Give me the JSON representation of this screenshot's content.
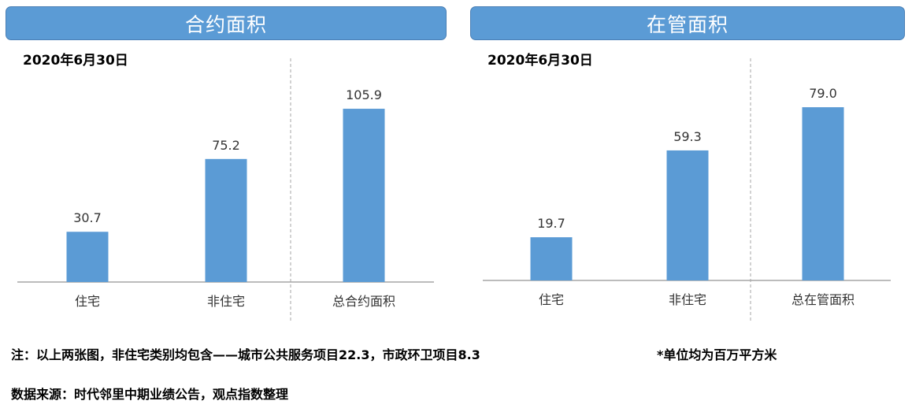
{
  "chart_data": [
    {
      "type": "bar",
      "title": "合约面积",
      "subtitle": "2020年6月30日",
      "categories": [
        "住宅",
        "非住宅",
        "总合约面积"
      ],
      "values": [
        30.7,
        75.2,
        105.9
      ],
      "value_labels": [
        "30.7",
        "75.2",
        "105.9"
      ],
      "bar_color": "#5B9BD5",
      "ylim": [
        0,
        130
      ],
      "grid": false,
      "divider_before_last": true
    },
    {
      "type": "bar",
      "title": "在管面积",
      "subtitle": "2020年6月30日",
      "categories": [
        "住宅",
        "非住宅",
        "总在管面积"
      ],
      "values": [
        19.7,
        59.3,
        79.0
      ],
      "value_labels": [
        "19.7",
        "59.3",
        "79.0"
      ],
      "bar_color": "#5B9BD5",
      "ylim": [
        0,
        97
      ],
      "grid": false,
      "divider_before_last": true
    }
  ],
  "notes": {
    "note": "注：以上两张图，非住宅类别均包含——城市公共服务项目22.3，市政环卫项目8.3",
    "unit": "*单位均为百万平方米",
    "source": "数据来源：时代邻里中期业绩公告，观点指数整理"
  }
}
